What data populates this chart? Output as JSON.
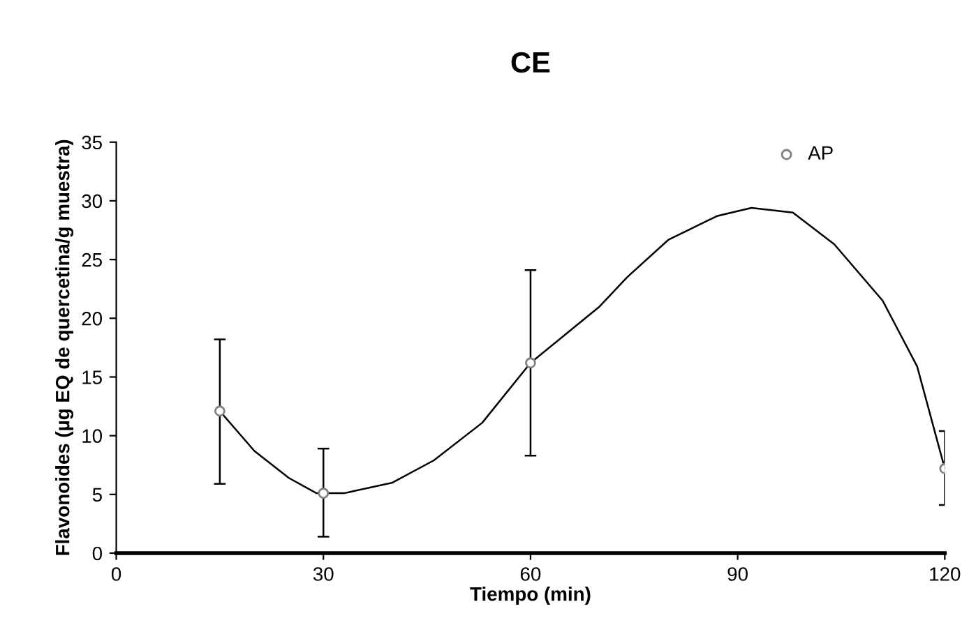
{
  "chart_data": {
    "type": "scatter",
    "title": "CE",
    "xlabel": "Tiempo (min)",
    "ylabel": "Flavonoides (µg EQ de quercetina/g muestra)",
    "xlim": [
      0,
      120
    ],
    "xticks": [
      0,
      30,
      60,
      90,
      120
    ],
    "ylim": [
      0,
      35
    ],
    "yticks": [
      0,
      5,
      10,
      15,
      20,
      25,
      30,
      35
    ],
    "grid": false,
    "legend": "top right",
    "series": [
      {
        "name": "AP",
        "marker": "circle",
        "color": "#808080",
        "x": [
          15,
          30,
          60,
          120
        ],
        "values": [
          12.1,
          5.1,
          16.2,
          7.2
        ],
        "errors": [
          [
            5.9,
            18.2
          ],
          [
            1.4,
            8.9
          ],
          [
            8.3,
            24.1
          ],
          [
            4.1,
            10.4
          ]
        ]
      },
      {
        "type": "line",
        "color": "#000000",
        "x": [
          15,
          20,
          25,
          29,
          33,
          40,
          46,
          53,
          60,
          70,
          74,
          80,
          87,
          92,
          98,
          104,
          111,
          116,
          120
        ],
        "values": [
          12.1,
          8.7,
          6.4,
          5.1,
          5.1,
          6.0,
          7.9,
          11.1,
          16.2,
          21.0,
          23.5,
          26.7,
          28.7,
          29.4,
          29.0,
          26.3,
          21.5,
          15.9,
          7.2
        ]
      }
    ]
  }
}
